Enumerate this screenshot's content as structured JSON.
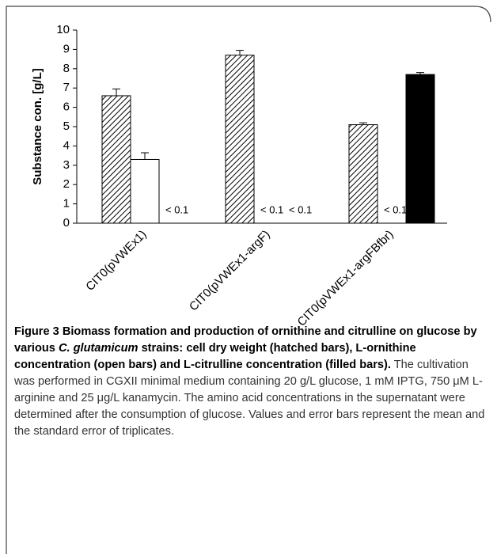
{
  "chart_data": {
    "type": "bar",
    "y_label": "Substance con. [g/L]",
    "categories": [
      "CIT0(pVWEx1)",
      "CIT0(pVWEx1-argF)",
      "CIT0(pVWEx1-argFBfbr)"
    ],
    "series": [
      {
        "fill": "hatched",
        "color": "#000000",
        "values": [
          6.6,
          8.7,
          5.1
        ],
        "errors": [
          0.35,
          0.25,
          0.1
        ]
      },
      {
        "fill": "open",
        "color": "#000000",
        "values": [
          3.3,
          null,
          null
        ],
        "errors": [
          0.35,
          null,
          null
        ],
        "value_labels": [
          null,
          "< 0.1",
          "< 0.1"
        ]
      },
      {
        "fill": "filled",
        "color": "#000000",
        "values": [
          null,
          null,
          7.7
        ],
        "errors": [
          null,
          null,
          0.1
        ],
        "value_labels": [
          "< 0.1",
          "< 0.1",
          null
        ]
      }
    ],
    "ylim": [
      0,
      10
    ],
    "yticks": [
      0,
      1,
      2,
      3,
      4,
      5,
      6,
      7,
      8,
      9,
      10
    ],
    "grid": false
  },
  "caption": {
    "label": "Figure 3",
    "title": [
      "Biomass formation and production of ornithine and citrulline on glucose by various ",
      "C. glutamicum",
      " strains: cell dry weight (hatched bars), L-ornithine concentration (open bars) and L-citrulline concentration (filled bars)."
    ],
    "body": "The cultivation was performed in CGXII minimal medium containing 20 g/L glucose, 1 mM IPTG, 750 μM L-arginine and 25 μg/L kanamycin. The amino acid concentrations in the supernatant were determined after the consumption of glucose. Values and error bars represent the mean and the standard error of triplicates."
  }
}
